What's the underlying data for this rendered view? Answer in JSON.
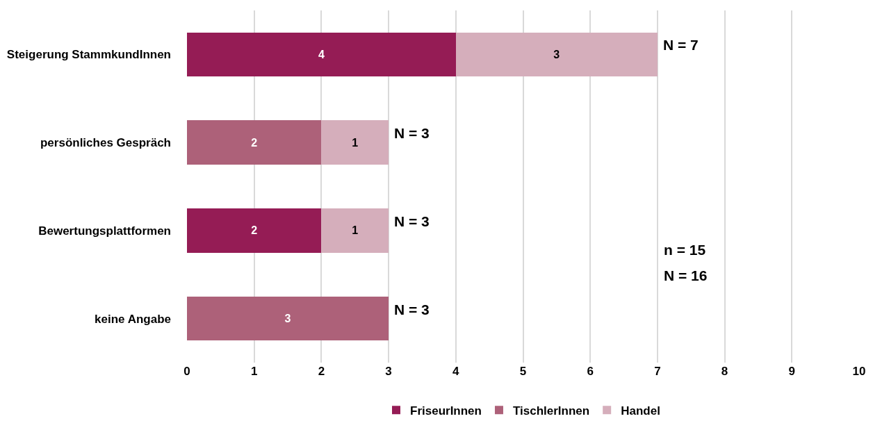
{
  "chart_data": {
    "type": "bar",
    "orientation": "horizontal",
    "stacked": true,
    "categories": [
      "Steigerung StammkundInnen",
      "persönliches Gespräch",
      "Bewertungsplattformen",
      "keine Angabe"
    ],
    "series": [
      {
        "name": "FriseurInnen",
        "color": "#951c55",
        "values": [
          4,
          null,
          2,
          null
        ]
      },
      {
        "name": "TischlerInnen",
        "color": "#ad6179",
        "values": [
          null,
          2,
          null,
          3
        ]
      },
      {
        "name": "Handel",
        "color": "#d5aebb",
        "values": [
          3,
          1,
          1,
          null
        ]
      }
    ],
    "xlim": [
      0,
      10
    ],
    "xticks": [
      0,
      1,
      2,
      3,
      4,
      5,
      6,
      7,
      8,
      9,
      10
    ],
    "grid": "x",
    "legend": "bottom",
    "data_labels": true,
    "totals": [
      "N = 7",
      "N = 3",
      "N = 3",
      "N = 3"
    ],
    "annotations": [
      "n = 15",
      "N = 16"
    ]
  }
}
